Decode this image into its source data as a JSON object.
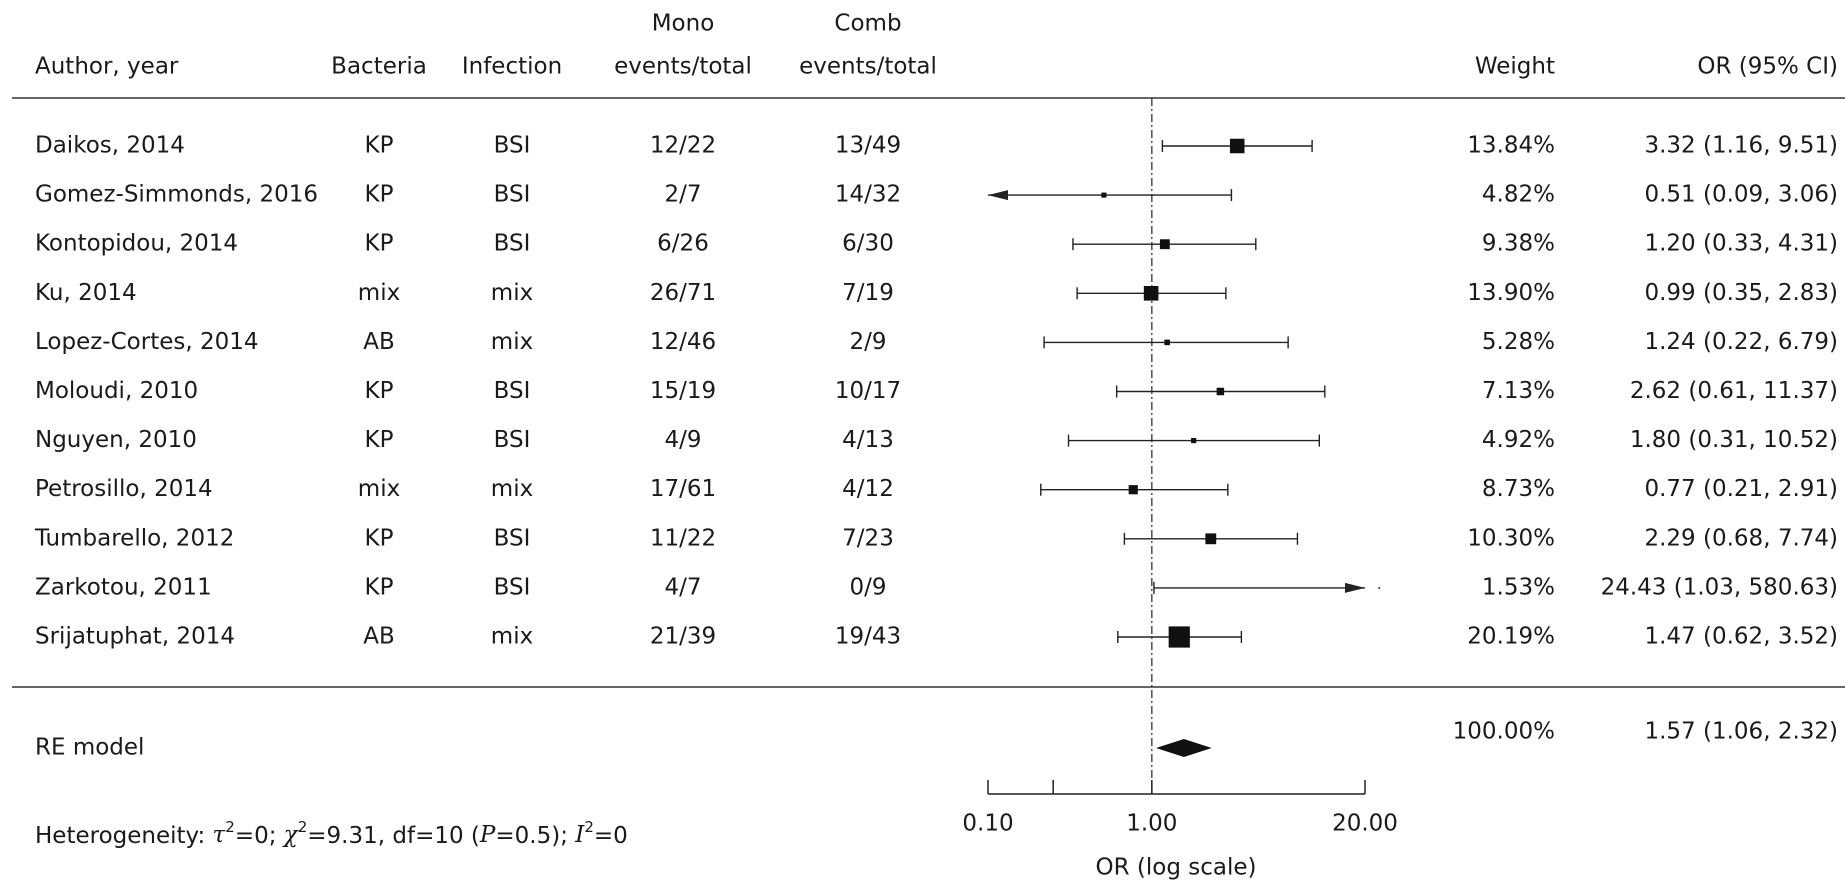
{
  "chart_data": {
    "type": "forest",
    "columns": {
      "author": "Author, year",
      "bacteria": "Bacteria",
      "infection": "Infection",
      "mono": [
        "Mono",
        "events/total"
      ],
      "comb": [
        "Comb",
        "events/total"
      ],
      "weight": "Weight",
      "ci": "OR (95% CI)"
    },
    "studies": [
      "Daikos, 2014",
      "Gomez-Simmonds, 2016",
      "Kontopidou, 2014",
      "Ku, 2014",
      "Lopez-Cortes, 2014",
      "Moloudi, 2010",
      "Nguyen, 2010",
      "Petrosillo, 2014",
      "Tumbarello, 2012",
      "Zarkotou, 2011",
      "Srijatuphat, 2014"
    ],
    "bacteria": [
      "KP",
      "KP",
      "KP",
      "mix",
      "AB",
      "KP",
      "KP",
      "mix",
      "KP",
      "KP",
      "AB"
    ],
    "infection": [
      "BSI",
      "BSI",
      "BSI",
      "mix",
      "mix",
      "BSI",
      "BSI",
      "mix",
      "BSI",
      "BSI",
      "mix"
    ],
    "mono": [
      "12/22",
      "2/7",
      "6/26",
      "26/71",
      "12/46",
      "15/19",
      "4/9",
      "17/61",
      "11/22",
      "4/7",
      "21/39"
    ],
    "comb": [
      "13/49",
      "14/32",
      "6/30",
      "7/19",
      "2/9",
      "10/17",
      "4/13",
      "4/12",
      "7/23",
      "0/9",
      "19/43"
    ],
    "or": {
      "values": [
        3.32,
        0.51,
        1.2,
        0.99,
        1.24,
        2.62,
        1.8,
        0.77,
        2.29,
        24.43,
        1.47
      ],
      "lower": [
        1.16,
        0.09,
        0.33,
        0.35,
        0.22,
        0.61,
        0.31,
        0.21,
        0.68,
        1.03,
        0.62
      ],
      "upper": [
        9.51,
        3.06,
        4.31,
        2.83,
        6.79,
        11.37,
        10.52,
        2.91,
        7.74,
        580.63,
        3.52
      ],
      "value_labels": [
        "3.32 (1.16, 9.51)",
        "0.51 (0.09, 3.06)",
        "1.20 (0.33, 4.31)",
        "0.99 (0.35, 2.83)",
        "1.24 (0.22, 6.79)",
        "2.62 (0.61, 11.37)",
        "1.80 (0.31, 10.52)",
        "0.77 (0.21, 2.91)",
        "2.29 (0.68, 7.74)",
        "24.43 (1.03, 580.63)",
        "1.47 (0.62, 3.52)"
      ]
    },
    "weight": {
      "values": [
        13.84,
        4.82,
        9.38,
        13.9,
        5.28,
        7.13,
        4.92,
        8.73,
        10.3,
        1.53,
        20.19
      ],
      "value_labels": [
        "13.84%",
        "4.82%",
        "9.38%",
        "13.90%",
        "5.28%",
        "7.13%",
        "4.92%",
        "8.73%",
        "10.30%",
        "1.53%",
        "20.19%"
      ]
    },
    "summary": {
      "label": "RE model",
      "value": 1.57,
      "lower": 1.06,
      "upper": 2.32,
      "value_label": "1.57 (1.06, 2.32)",
      "weight": 100,
      "weight_label": "100.00%"
    },
    "heterogeneity": [
      "Heterogeneity: ",
      "τ",
      "2",
      "=0; ",
      "χ",
      "2",
      "=9.31, df=10 (",
      "P",
      "=0.5); ",
      "I",
      "2",
      "=0"
    ],
    "xlabel": "OR (log scale)",
    "log": true,
    "xlim": [
      0.1,
      20
    ],
    "xticks": [
      {
        "value": 0.1,
        "label": "0.10"
      },
      {
        "value": 0.25,
        "label": null
      },
      {
        "value": 1,
        "label": "1.00"
      },
      {
        "value": 20,
        "label": "20.00"
      }
    ],
    "refline": 1
  }
}
